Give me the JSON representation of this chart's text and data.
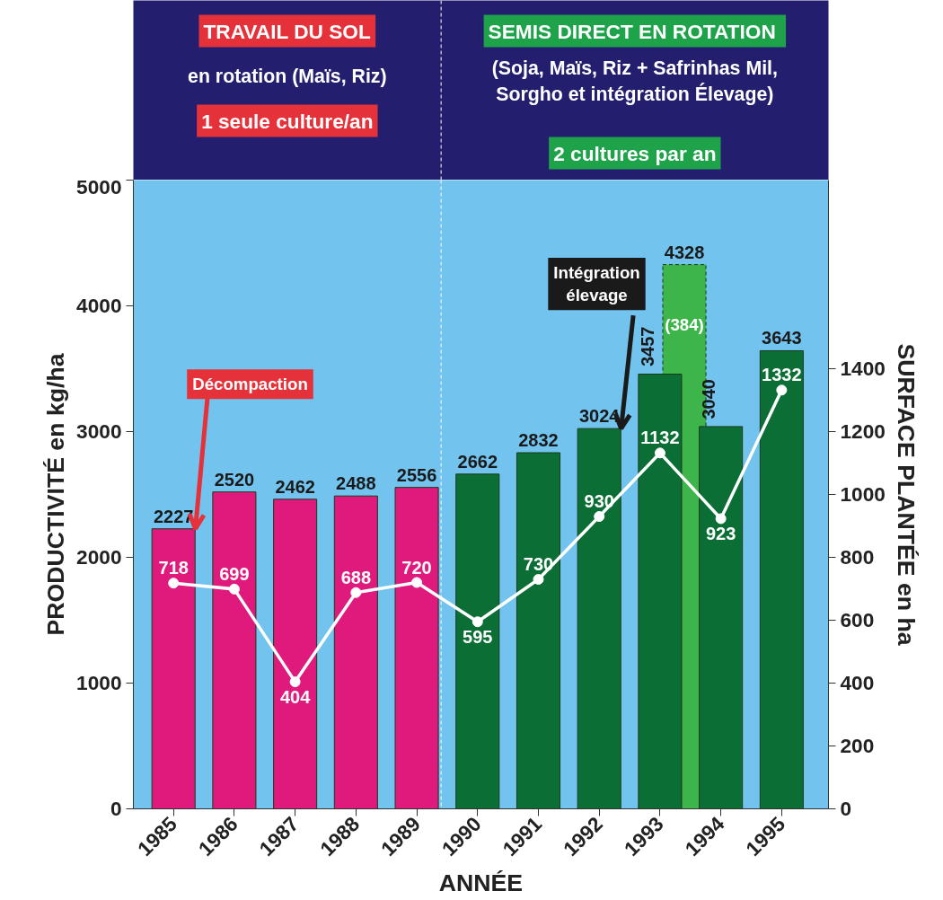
{
  "chart_data": {
    "type": "bar",
    "xlabel": "ANNÉE",
    "ylabel": "PRODUCTIVITÉ en kg/ha",
    "y2label": "SURFACE PLANTÉE en ha",
    "x": [
      1985,
      1986,
      1987,
      1988,
      1989,
      1990,
      1991,
      1992,
      1993,
      1994,
      1995
    ],
    "series": [
      {
        "x": [
          1993.4
        ],
        "color": "#3db54a",
        "values": [
          4328
        ]
      },
      {
        "color": "#0b6e35",
        "colors": [
          "#e0197d",
          "#e0197d",
          "#e0197d",
          "#e0197d",
          "#e0197d",
          "#0b6e35",
          "#0b6e35",
          "#0b6e35",
          "#0b6e35",
          "#0b6e35",
          "#0b6e35"
        ],
        "values": [
          2227,
          2520,
          2462,
          2488,
          2556,
          2662,
          2832,
          3024,
          3457,
          3040,
          3643
        ]
      },
      {
        "type": "line",
        "axis": "y2",
        "color": "#ffffff",
        "values": [
          718,
          699,
          404,
          688,
          720,
          595,
          730,
          930,
          1132,
          923,
          1332
        ]
      }
    ],
    "marker": "circle",
    "data_labels": true,
    "grid": false,
    "xlim": [
      1984.34,
      1995.77
    ],
    "xticks": [
      1985,
      1986,
      1987,
      1988,
      1989,
      1990,
      1991,
      1992,
      1993,
      1994,
      1995
    ],
    "ylim": [
      0,
      5000
    ],
    "yticks": [
      0,
      1000,
      2000,
      3000,
      4000,
      5000
    ],
    "y2lim": [
      0,
      2000
    ],
    "y2ticks": [
      0,
      200,
      400,
      600,
      800,
      1000,
      1200,
      1400
    ],
    "ref_lines": [
      {
        "axis": "x",
        "value": 1989.4,
        "color": "#ffffff",
        "line_style": "dashed"
      }
    ],
    "annotations": [
      "TRAVAIL DU SOL",
      "en rotation (Maïs, Riz)",
      "1 seule culture/an",
      "SEMIS DIRECT  EN ROTATION",
      "(Soja, Maïs, Riz + Safrinhas Mil, Sorgho et intégration Élevage)",
      "2 cultures par an",
      "(384)",
      {
        "text": "Décompaction",
        "x": 1985.36,
        "y": 2227
      },
      {
        "text": "Intégration élevage",
        "x": 1992.36,
        "y": 3024
      }
    ]
  }
}
